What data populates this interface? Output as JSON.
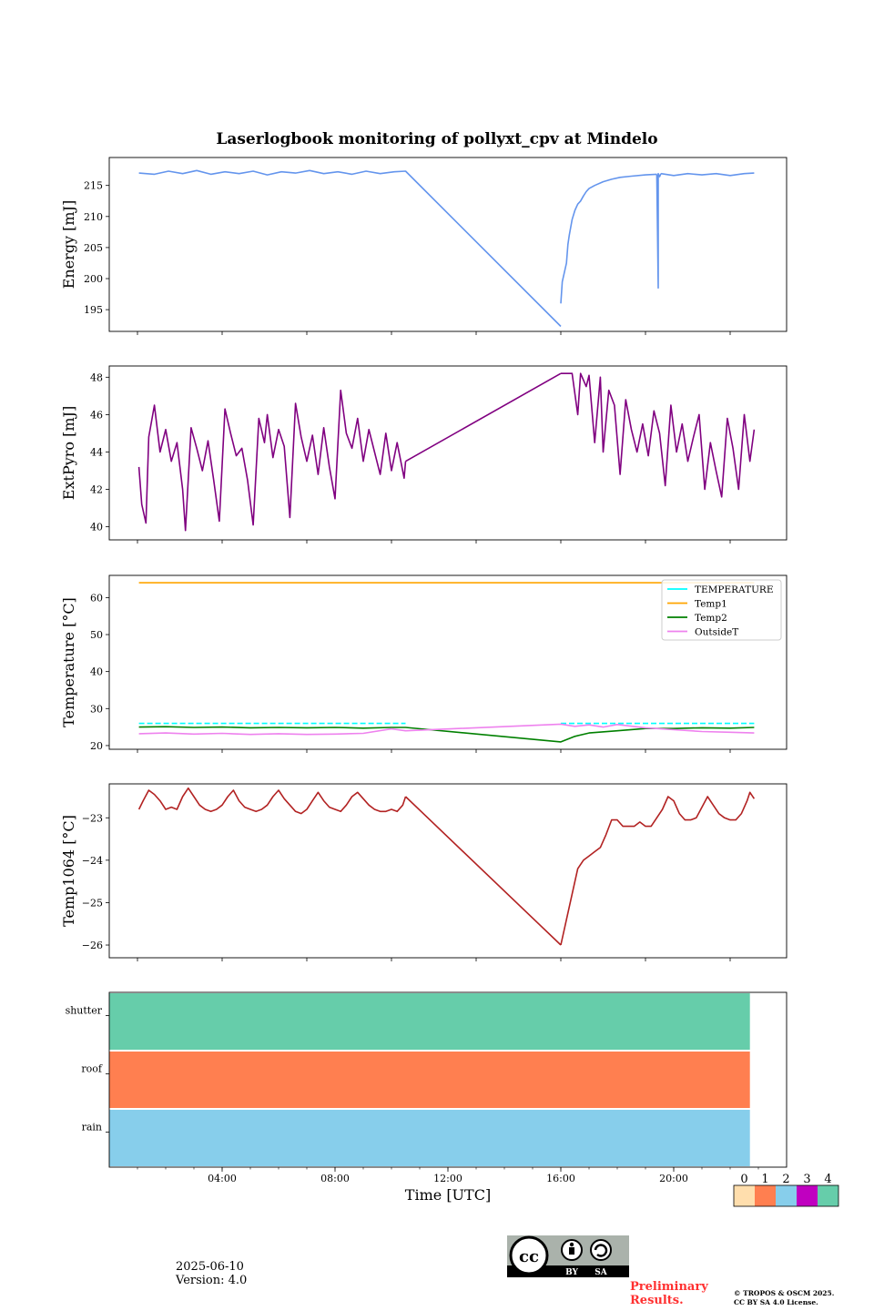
{
  "title": "Laserlogbook monitoring of pollyxt_cpv at Mindelo",
  "footer": {
    "date": "2025-06-10",
    "version": "Version: 4.0",
    "preliminary": "Preliminary Results.",
    "copyright_line1": "© TROPOS & OSCM 2025.",
    "copyright_line2": "CC BY SA 4.0 License.",
    "license_badge": {
      "by": "BY",
      "sa": "SA"
    }
  },
  "colorbar": {
    "ticks": [
      "0",
      "1",
      "2",
      "3",
      "4"
    ],
    "colors": [
      "#ffdead",
      "#ff7f50",
      "#87ceeb",
      "#c000c0",
      "#66cdaa"
    ]
  },
  "chart_data": [
    {
      "type": "line",
      "ylabel": "Energy [mJ]",
      "yticks": [
        195,
        200,
        205,
        210,
        215
      ],
      "ylim": [
        191.5,
        219.5
      ],
      "xlim": [
        0,
        24
      ],
      "series": [
        {
          "color": "#6495ed",
          "segments": [
            {
              "x": [
                1.05,
                1.6,
                2.1,
                2.6,
                3.1,
                3.6,
                4.1,
                4.6,
                5.1,
                5.6,
                6.1,
                6.6,
                7.1,
                7.6,
                8.1,
                8.6,
                9.1,
                9.6,
                10.1,
                10.5,
                16.0
              ],
              "y": [
                217,
                216.8,
                217.3,
                216.9,
                217.4,
                216.8,
                217.2,
                216.9,
                217.3,
                216.7,
                217.2,
                217,
                217.4,
                216.9,
                217.2,
                216.8,
                217.3,
                216.9,
                217.2,
                217.3,
                192.3
              ]
            },
            {
              "x": [
                16.0,
                16.05,
                16.2,
                16.25,
                16.3,
                16.4,
                16.5,
                16.6,
                16.7,
                16.8,
                16.9,
                17.0,
                17.2,
                17.5,
                17.8,
                18.1,
                18.5,
                19.0,
                19.4
              ],
              "y": [
                196.0,
                199.5,
                202.5,
                205.5,
                207.0,
                209.5,
                211.0,
                212.0,
                212.5,
                213.3,
                214.0,
                214.5,
                215.0,
                215.6,
                216.0,
                216.3,
                216.5,
                216.7,
                216.8
              ]
            },
            {
              "x": [
                19.4,
                19.45,
                19.45,
                19.5,
                19.55
              ],
              "y": [
                216.8,
                198.5,
                216.9,
                216.4,
                216.9
              ]
            },
            {
              "x": [
                19.55,
                20.0,
                20.5,
                21.0,
                21.5,
                22.0,
                22.5,
                22.85
              ],
              "y": [
                216.9,
                216.6,
                216.9,
                216.7,
                216.9,
                216.6,
                216.9,
                217.0
              ]
            }
          ]
        }
      ]
    },
    {
      "type": "line",
      "ylabel": "ExtPyro [mJ]",
      "yticks": [
        40,
        42,
        44,
        46,
        48
      ],
      "ylim": [
        39.3,
        48.6
      ],
      "xlim": [
        0,
        24
      ],
      "series": [
        {
          "color": "#800080",
          "segments": [
            {
              "x": [
                1.05,
                1.15,
                1.3,
                1.4,
                1.6,
                1.8,
                2.0,
                2.2,
                2.4,
                2.6,
                2.7,
                2.9,
                3.1,
                3.3,
                3.5,
                3.7,
                3.9,
                4.1,
                4.3,
                4.5,
                4.7,
                4.9,
                5.1,
                5.3,
                5.5,
                5.6,
                5.8,
                6.0,
                6.2,
                6.4,
                6.6,
                6.8,
                7.0,
                7.2,
                7.4,
                7.6,
                7.8,
                8.0,
                8.2,
                8.4,
                8.6,
                8.8,
                9.0,
                9.2,
                9.4,
                9.6,
                9.8,
                10.0,
                10.2,
                10.45,
                10.5
              ],
              "y": [
                43.2,
                41.2,
                40.2,
                44.8,
                46.5,
                44.0,
                45.2,
                43.5,
                44.5,
                42.0,
                39.8,
                45.3,
                44.2,
                43.0,
                44.6,
                42.5,
                40.3,
                46.3,
                45.0,
                43.8,
                44.2,
                42.5,
                40.1,
                45.8,
                44.5,
                46.0,
                43.7,
                45.2,
                44.3,
                40.5,
                46.6,
                44.8,
                43.5,
                44.9,
                42.8,
                45.3,
                43.2,
                41.5,
                47.3,
                45.0,
                44.2,
                45.8,
                43.5,
                45.2,
                44.0,
                42.8,
                45.0,
                43.0,
                44.5,
                42.6,
                43.5
              ]
            },
            {
              "x": [
                10.5,
                16.0
              ],
              "y": [
                43.5,
                48.2
              ]
            },
            {
              "x": [
                16.0,
                16.4,
                16.6,
                16.7,
                16.9,
                17.0,
                17.2,
                17.4,
                17.5,
                17.7,
                17.9,
                18.1,
                18.3,
                18.5,
                18.7,
                18.9,
                19.1,
                19.3,
                19.5,
                19.7,
                19.9,
                20.1,
                20.3,
                20.5,
                20.7,
                20.9,
                21.1,
                21.3,
                21.5,
                21.7,
                21.9,
                22.1,
                22.3,
                22.5,
                22.7,
                22.85
              ],
              "y": [
                48.2,
                48.2,
                46.0,
                48.2,
                47.5,
                48.1,
                44.5,
                48.0,
                44.0,
                47.3,
                46.5,
                42.8,
                46.8,
                45.2,
                44.0,
                45.5,
                43.8,
                46.2,
                45.0,
                42.2,
                46.5,
                44.0,
                45.5,
                43.5,
                44.8,
                46.0,
                42.0,
                44.5,
                43.0,
                41.6,
                45.8,
                44.2,
                42.0,
                46.0,
                43.5,
                45.2
              ]
            }
          ]
        }
      ]
    },
    {
      "type": "line",
      "ylabel": "Temperature [°C]",
      "yticks": [
        20,
        30,
        40,
        50,
        60
      ],
      "ylim": [
        19,
        66
      ],
      "xlim": [
        0,
        24
      ],
      "legend": "top-right",
      "series": [
        {
          "name": "TEMPERATURE",
          "color": "#00ffff",
          "dashed": true,
          "segments": [
            {
              "x": [
                1.05,
                10.5
              ],
              "y": [
                26.0,
                26.0
              ]
            },
            {
              "x": [
                16.0,
                22.85
              ],
              "y": [
                26.0,
                26.0
              ]
            }
          ]
        },
        {
          "name": "Temp1",
          "color": "#ffa500",
          "segments": [
            {
              "x": [
                1.05,
                22.85
              ],
              "y": [
                64.0,
                64.0
              ]
            }
          ]
        },
        {
          "name": "Temp2",
          "color": "#008000",
          "segments": [
            {
              "x": [
                1.05,
                2,
                3,
                4,
                5,
                6,
                7,
                8,
                9,
                10,
                10.5,
                16.0,
                16.5,
                17,
                18,
                19,
                20,
                21,
                22,
                22.85
              ],
              "y": [
                25.0,
                25.1,
                24.9,
                25.0,
                24.8,
                24.9,
                24.8,
                24.9,
                24.7,
                24.9,
                24.9,
                21.0,
                22.5,
                23.4,
                24.0,
                24.6,
                24.6,
                24.8,
                24.7,
                24.9
              ]
            }
          ]
        },
        {
          "name": "OutsideT",
          "color": "#ee82ee",
          "segments": [
            {
              "x": [
                1.05,
                2,
                3,
                4,
                5,
                6,
                7,
                8,
                9,
                10,
                10.5,
                16.0,
                16.5,
                17,
                17.5,
                18,
                19,
                20,
                21,
                22,
                22.85
              ],
              "y": [
                23.2,
                23.4,
                23.1,
                23.3,
                23.0,
                23.2,
                23.0,
                23.1,
                23.3,
                24.5,
                24.0,
                25.8,
                25.2,
                25.6,
                25.0,
                25.7,
                24.8,
                24.3,
                23.8,
                23.6,
                23.4
              ]
            }
          ]
        }
      ]
    },
    {
      "type": "line",
      "ylabel": "Temp1064 [°C]",
      "yticks": [
        -23,
        -24,
        -25,
        -26
      ],
      "ylim": [
        -26.3,
        -22.2
      ],
      "xlim": [
        0,
        24
      ],
      "series": [
        {
          "color": "#b22222",
          "segments": [
            {
              "x": [
                1.05,
                1.2,
                1.4,
                1.6,
                1.8,
                2.0,
                2.2,
                2.4,
                2.6,
                2.8,
                3.0,
                3.2,
                3.4,
                3.6,
                3.8,
                4.0,
                4.2,
                4.4,
                4.6,
                4.8,
                5.0,
                5.2,
                5.4,
                5.6,
                5.8,
                6.0,
                6.2,
                6.4,
                6.6,
                6.8,
                7.0,
                7.2,
                7.4,
                7.6,
                7.8,
                8.0,
                8.2,
                8.4,
                8.6,
                8.8,
                9.0,
                9.2,
                9.4,
                9.6,
                9.8,
                10.0,
                10.2,
                10.4,
                10.5
              ],
              "y": [
                -22.8,
                -22.6,
                -22.35,
                -22.45,
                -22.6,
                -22.8,
                -22.75,
                -22.8,
                -22.5,
                -22.3,
                -22.5,
                -22.7,
                -22.8,
                -22.85,
                -22.8,
                -22.7,
                -22.5,
                -22.35,
                -22.6,
                -22.75,
                -22.8,
                -22.85,
                -22.8,
                -22.7,
                -22.5,
                -22.35,
                -22.55,
                -22.7,
                -22.85,
                -22.9,
                -22.8,
                -22.6,
                -22.4,
                -22.6,
                -22.75,
                -22.8,
                -22.85,
                -22.7,
                -22.5,
                -22.4,
                -22.55,
                -22.7,
                -22.8,
                -22.85,
                -22.85,
                -22.8,
                -22.85,
                -22.7,
                -22.5
              ]
            },
            {
              "x": [
                10.5,
                16.0
              ],
              "y": [
                -22.5,
                -26.0
              ]
            },
            {
              "x": [
                16.0,
                16.2,
                16.4,
                16.6,
                16.8,
                17.0,
                17.2,
                17.4,
                17.6,
                17.8,
                18.0,
                18.2,
                18.4,
                18.6,
                18.8,
                19.0,
                19.2,
                19.4,
                19.6,
                19.8,
                20.0,
                20.2,
                20.4,
                20.6,
                20.8,
                21.0,
                21.2,
                21.4,
                21.6,
                21.8,
                22.0,
                22.2,
                22.4,
                22.6,
                22.7,
                22.85
              ],
              "y": [
                -26.0,
                -25.4,
                -24.8,
                -24.2,
                -24.0,
                -23.9,
                -23.8,
                -23.7,
                -23.4,
                -23.05,
                -23.05,
                -23.2,
                -23.2,
                -23.2,
                -23.1,
                -23.2,
                -23.2,
                -23.0,
                -22.8,
                -22.5,
                -22.6,
                -22.9,
                -23.05,
                -23.05,
                -23.0,
                -22.75,
                -22.5,
                -22.7,
                -22.9,
                -23.0,
                -23.05,
                -23.05,
                -22.9,
                -22.6,
                -22.4,
                -22.55
              ]
            }
          ]
        }
      ]
    },
    {
      "type": "heatmap",
      "ylabel": "",
      "rows": [
        "shutter",
        "roof",
        "rain"
      ],
      "xlim": [
        0,
        24
      ],
      "xlabel": "Time [UTC]",
      "xticks": [
        "04:00",
        "08:00",
        "12:00",
        "16:00",
        "20:00"
      ],
      "xtick_hours": [
        4,
        8,
        12,
        16,
        20
      ],
      "values": [
        {
          "row": "shutter",
          "start": 0,
          "end": 22.7,
          "status": 4
        },
        {
          "row": "roof",
          "start": 0,
          "end": 22.7,
          "status": 1
        },
        {
          "row": "rain",
          "start": 0,
          "end": 22.7,
          "status": 2
        }
      ]
    }
  ]
}
